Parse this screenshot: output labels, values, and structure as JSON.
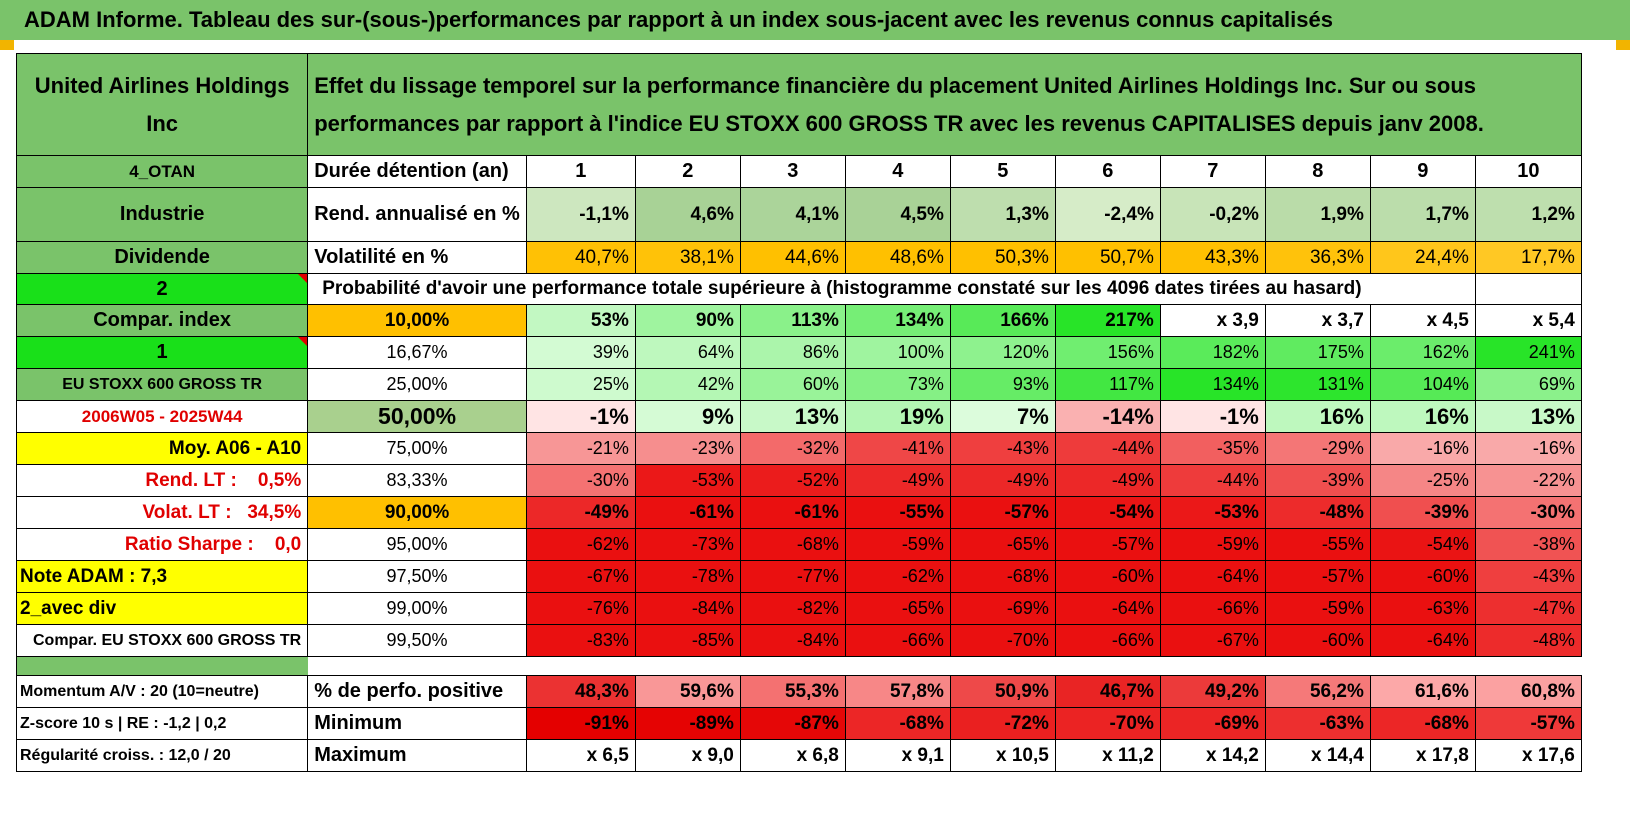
{
  "title": "ADAM Informe. Tableau des sur-(sous-)performances par rapport à un index sous-jacent avec les revenus connus capitalisés",
  "header": {
    "company": "United Airlines Holdings Inc",
    "description": "Effet du lissage temporel sur la performance financière du placement United Airlines Holdings Inc. Sur ou sous performances par rapport à l'indice EU STOXX 600 GROSS TR avec les revenus CAPITALISES depuis janv 2008."
  },
  "rows": {
    "holding": {
      "side": "4_OTAN",
      "label": "Durée détention (an)",
      "values": [
        "1",
        "2",
        "3",
        "4",
        "5",
        "6",
        "7",
        "8",
        "9",
        "10"
      ]
    },
    "rend": {
      "side": "Industrie",
      "label": "Rend. annualisé en %",
      "values": [
        "-1,1%",
        "4,6%",
        "4,1%",
        "4,5%",
        "1,3%",
        "-2,4%",
        "-0,2%",
        "1,9%",
        "1,7%",
        "1,2%"
      ]
    },
    "vol": {
      "side": "Dividende",
      "label": "Volatilité en %",
      "values": [
        "40,7%",
        "38,1%",
        "44,6%",
        "48,6%",
        "50,3%",
        "50,7%",
        "43,3%",
        "36,3%",
        "24,4%",
        "17,7%"
      ]
    },
    "proba": {
      "side": "2",
      "text": "Probabilité d'avoir une performance totale supérieure à (histogramme constaté sur les 4096 dates tirées au hasard)"
    },
    "quantiles": [
      {
        "side": "Compar. index",
        "q": "10,00%",
        "values": [
          "53%",
          "90%",
          "113%",
          "134%",
          "166%",
          "217%",
          "x 3,9",
          "x 3,7",
          "x 4,5",
          "x 5,4"
        ]
      },
      {
        "side": "1",
        "q": "16,67%",
        "values": [
          "39%",
          "64%",
          "86%",
          "100%",
          "120%",
          "156%",
          "182%",
          "175%",
          "162%",
          "241%"
        ]
      },
      {
        "side": "EU STOXX 600 GROSS TR",
        "q": "25,00%",
        "values": [
          "25%",
          "42%",
          "60%",
          "73%",
          "93%",
          "117%",
          "134%",
          "131%",
          "104%",
          "69%"
        ]
      },
      {
        "side": "2006W05 - 2025W44",
        "q": "50,00%",
        "values": [
          "-1%",
          "9%",
          "13%",
          "19%",
          "7%",
          "-14%",
          "-1%",
          "16%",
          "16%",
          "13%"
        ]
      },
      {
        "side": "Moy. A06 - A10",
        "q": "75,00%",
        "values": [
          "-21%",
          "-23%",
          "-32%",
          "-41%",
          "-43%",
          "-44%",
          "-35%",
          "-29%",
          "-16%",
          "-16%"
        ]
      },
      {
        "side": "Rend. LT :    0,5%",
        "q": "83,33%",
        "values": [
          "-30%",
          "-53%",
          "-52%",
          "-49%",
          "-49%",
          "-49%",
          "-44%",
          "-39%",
          "-25%",
          "-22%"
        ]
      },
      {
        "side": "Volat. LT :   34,5%",
        "q": "90,00%",
        "values": [
          "-49%",
          "-61%",
          "-61%",
          "-55%",
          "-57%",
          "-54%",
          "-53%",
          "-48%",
          "-39%",
          "-30%"
        ]
      },
      {
        "side": "Ratio Sharpe :    0,0",
        "q": "95,00%",
        "values": [
          "-62%",
          "-73%",
          "-68%",
          "-59%",
          "-65%",
          "-57%",
          "-59%",
          "-55%",
          "-54%",
          "-38%"
        ]
      },
      {
        "side": "Note ADAM : 7,3",
        "q": "97,50%",
        "values": [
          "-67%",
          "-78%",
          "-77%",
          "-62%",
          "-68%",
          "-60%",
          "-64%",
          "-57%",
          "-60%",
          "-43%"
        ]
      },
      {
        "side": "2_avec div",
        "q": "99,00%",
        "values": [
          "-76%",
          "-84%",
          "-82%",
          "-65%",
          "-69%",
          "-64%",
          "-66%",
          "-59%",
          "-63%",
          "-47%"
        ]
      },
      {
        "side": "Compar. EU STOXX 600 GROSS TR",
        "q": "99,50%",
        "values": [
          "-83%",
          "-85%",
          "-84%",
          "-66%",
          "-70%",
          "-66%",
          "-67%",
          "-60%",
          "-64%",
          "-48%"
        ]
      }
    ],
    "stats": [
      {
        "side": "Momentum A/V : 20 (10=neutre)",
        "label": "% de perfo. positive",
        "values": [
          "48,3%",
          "59,6%",
          "55,3%",
          "57,8%",
          "50,9%",
          "46,7%",
          "49,2%",
          "56,2%",
          "61,6%",
          "60,8%"
        ]
      },
      {
        "side": "Z-score 10 s | RE : -1,2 | 0,2",
        "label": "Minimum",
        "values": [
          "-91%",
          "-89%",
          "-87%",
          "-68%",
          "-72%",
          "-70%",
          "-69%",
          "-63%",
          "-68%",
          "-57%"
        ]
      },
      {
        "side": "Régularité croiss. : 12,0 / 20",
        "label": "Maximum",
        "values": [
          "x 6,5",
          "x 9,0",
          "x 6,8",
          "x 9,1",
          "x 10,5",
          "x 11,2",
          "x 14,2",
          "x 14,4",
          "x 17,8",
          "x 17,6"
        ]
      }
    ]
  },
  "colors": {
    "header_green": "#7ac36a",
    "lime": "#19e019",
    "yellow": "#ffff00",
    "orange": "#ffc000",
    "red_text": "#e00000"
  }
}
